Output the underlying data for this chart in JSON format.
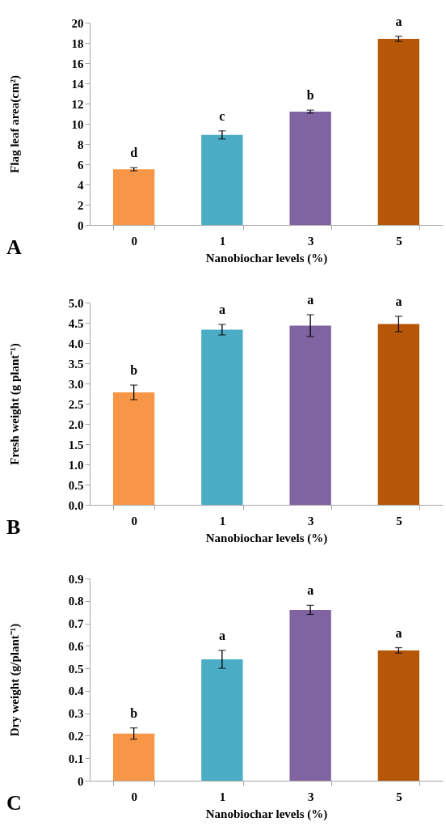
{
  "chart_data": [
    {
      "type": "bar",
      "categories": [
        "0",
        "1",
        "3",
        "5"
      ],
      "values": [
        5.5,
        8.9,
        11.2,
        18.4
      ],
      "errors": [
        0.15,
        0.4,
        0.15,
        0.25
      ],
      "colors": [
        "#f79646",
        "#4bacc6",
        "#8064a2",
        "#b65708"
      ],
      "xlabel": "Nanobiochar levels (%)",
      "ylabel": "Flag leaf area(cm²)",
      "ylim": [
        0,
        20
      ],
      "yticks": [
        0,
        2,
        4,
        6,
        8,
        10,
        12,
        14,
        16,
        18,
        20
      ],
      "grid": false,
      "legend": false,
      "annotations": [
        "A",
        {
          "text": "d",
          "x": "0",
          "y": 5.65
        },
        {
          "text": "c",
          "x": "1",
          "y": 9.3
        },
        {
          "text": "b",
          "x": "3",
          "y": 11.35
        },
        {
          "text": "a",
          "x": "5",
          "y": 18.65
        }
      ]
    },
    {
      "type": "bar",
      "categories": [
        "0",
        "1",
        "3",
        "5"
      ],
      "values": [
        2.78,
        4.33,
        4.43,
        4.47
      ],
      "errors": [
        0.18,
        0.13,
        0.27,
        0.19
      ],
      "colors": [
        "#f79646",
        "#4bacc6",
        "#8064a2",
        "#b65708"
      ],
      "xlabel": "Nanobiochar levels (%)",
      "ylabel": "Fresh weight (g plant⁻¹)",
      "ylim": [
        0,
        5
      ],
      "yticks": [
        {
          "value": 0,
          "label": "0.0"
        },
        0.5,
        {
          "value": 1,
          "label": "1.0"
        },
        1.5,
        {
          "value": 2,
          "label": "2.0"
        },
        2.5,
        {
          "value": 3,
          "label": "3.0"
        },
        3.5,
        {
          "value": 4,
          "label": "4.0"
        },
        4.5,
        {
          "value": 5,
          "label": "5.0"
        }
      ],
      "grid": false,
      "legend": false,
      "annotations": [
        "B",
        {
          "text": "b",
          "x": "0",
          "y": 2.96
        },
        {
          "text": "a",
          "x": "1",
          "y": 4.46
        },
        {
          "text": "a",
          "x": "3",
          "y": 4.7
        },
        {
          "text": "a",
          "x": "5",
          "y": 4.66
        }
      ]
    },
    {
      "type": "bar",
      "categories": [
        "0",
        "1",
        "3",
        "5"
      ],
      "values": [
        0.21,
        0.54,
        0.76,
        0.58
      ],
      "errors": [
        0.025,
        0.04,
        0.02,
        0.012
      ],
      "colors": [
        "#f79646",
        "#4bacc6",
        "#8064a2",
        "#b65708"
      ],
      "xlabel": "Nanobiochar levels (%)",
      "ylabel": "Dry weight (g/plant⁻¹)",
      "ylim": [
        0,
        0.9
      ],
      "yticks": [
        0,
        0.1,
        0.2,
        0.3,
        0.4,
        0.5,
        0.6,
        0.7,
        0.8,
        0.9
      ],
      "grid": false,
      "legend": false,
      "annotations": [
        "C",
        {
          "text": "b",
          "x": "0",
          "y": 0.235
        },
        {
          "text": "a",
          "x": "1",
          "y": 0.58
        },
        {
          "text": "a",
          "x": "3",
          "y": 0.78
        },
        {
          "text": "a",
          "x": "5",
          "y": 0.592
        }
      ]
    }
  ]
}
